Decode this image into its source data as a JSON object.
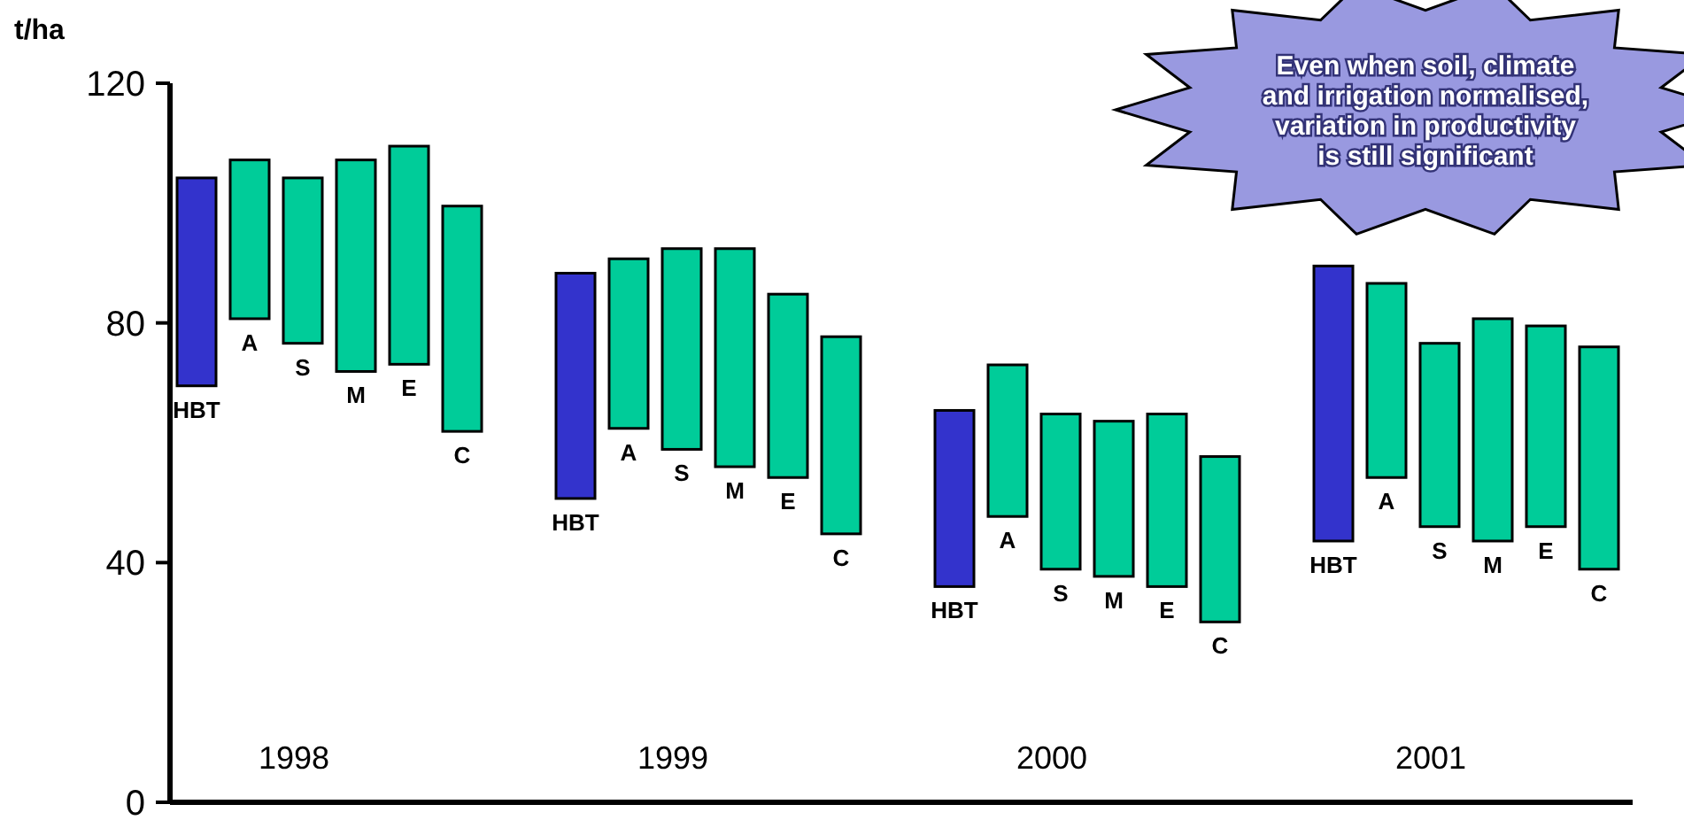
{
  "chart_data": {
    "type": "bar",
    "ylabel": "t/ha",
    "categories": [
      "1998",
      "1999",
      "2000",
      "2001"
    ],
    "series": [
      {
        "name": "HBT",
        "color": "#3333cc",
        "base": [
          69.5,
          50.7,
          36,
          43.6
        ],
        "values": [
          34.7,
          37.6,
          29.4,
          45.9
        ]
      },
      {
        "name": "A",
        "color": "#00cc99",
        "base": [
          80.7,
          62.4,
          47.7,
          54.2
        ],
        "values": [
          26.5,
          28.3,
          25.3,
          32.4
        ]
      },
      {
        "name": "S",
        "color": "#00cc99",
        "base": [
          76.6,
          58.9,
          38.9,
          46
        ],
        "values": [
          27.6,
          33.5,
          25.9,
          30.6
        ]
      },
      {
        "name": "M",
        "color": "#00cc99",
        "base": [
          71.9,
          56,
          37.7,
          43.6
        ],
        "values": [
          35.3,
          36.4,
          25.9,
          37.1
        ]
      },
      {
        "name": "E",
        "color": "#00cc99",
        "base": [
          73.1,
          54.2,
          36,
          46
        ],
        "values": [
          36.4,
          30.6,
          28.8,
          33.5
        ]
      },
      {
        "name": "C",
        "color": "#00cc99",
        "base": [
          61.9,
          44.8,
          30.1,
          38.9
        ],
        "values": [
          37.6,
          32.9,
          27.6,
          37.1
        ]
      }
    ],
    "ylim": [
      0,
      120
    ],
    "yticks": [
      0,
      40,
      80,
      120
    ],
    "annotations": [
      "Even when soil, climate and irrigation normalised, variation in productivity is still significant"
    ]
  }
}
